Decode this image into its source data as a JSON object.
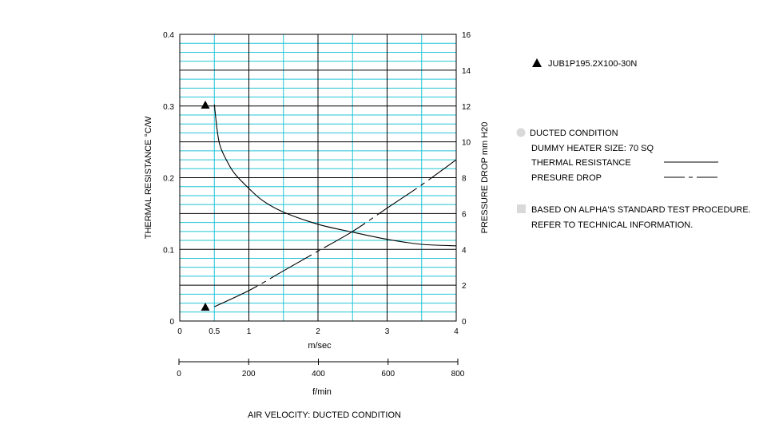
{
  "chart_data": {
    "type": "line",
    "title": "",
    "model": "JUB1P195.2X100-30N",
    "x": {
      "label": "m/sec",
      "range": [
        0,
        4
      ],
      "ticks": [
        "0",
        "0.5",
        "1",
        "2",
        "3",
        "4"
      ],
      "tick_values": [
        0,
        0.5,
        1,
        2,
        3,
        4
      ]
    },
    "x2": {
      "label": "f/min",
      "range": [
        0,
        800
      ],
      "ticks": [
        "0",
        "200",
        "400",
        "600",
        "800"
      ],
      "tick_values": [
        0,
        200,
        400,
        600,
        800
      ]
    },
    "y_left": {
      "label": "THERMAL RESISTANCE  °C/W",
      "range": [
        0,
        0.4
      ],
      "ticks": [
        "0",
        "0.1",
        "0.2",
        "0.3",
        "0.4"
      ],
      "tick_values": [
        0,
        0.1,
        0.2,
        0.3,
        0.4
      ]
    },
    "y_right": {
      "label": "PRESSURE DROP  mm H20",
      "range": [
        0,
        16
      ],
      "ticks": [
        "0",
        "2",
        "4",
        "6",
        "8",
        "10",
        "12",
        "14",
        "16"
      ],
      "tick_values": [
        0,
        2,
        4,
        6,
        8,
        10,
        12,
        14,
        16
      ]
    },
    "grid": true,
    "series": [
      {
        "name": "THERMAL RESISTANCE",
        "axis": "left",
        "style": "solid",
        "x": [
          0.5,
          0.55,
          0.6,
          0.7,
          0.8,
          1.0,
          1.2,
          1.5,
          2.0,
          2.5,
          3.0,
          3.5,
          4.0
        ],
        "y": [
          0.302,
          0.26,
          0.24,
          0.22,
          0.205,
          0.185,
          0.168,
          0.152,
          0.135,
          0.124,
          0.114,
          0.107,
          0.105
        ]
      },
      {
        "name": "PRESURE DROP",
        "axis": "right",
        "style": "dash-dot",
        "x": [
          0.5,
          1.0,
          1.5,
          2.0,
          2.5,
          3.0,
          3.5,
          4.0
        ],
        "y": [
          0.8,
          1.7,
          2.8,
          3.9,
          5.0,
          6.3,
          7.6,
          9.0
        ]
      }
    ],
    "markers": [
      {
        "series": "THERMAL RESISTANCE",
        "x": 0.37,
        "y": 0.302,
        "axis": "left"
      },
      {
        "series": "PRESURE DROP",
        "x": 0.37,
        "y": 0.8,
        "axis": "right"
      }
    ],
    "caption": "AIR VELOCITY:  DUCTED CONDITION",
    "legend": {
      "model_label": "JUB1P195.2X100-30N",
      "condition_title": "DUCTED CONDITION",
      "heater": "DUMMY HEATER SIZE:  70 SQ",
      "thermal": "THERMAL RESISTANCE",
      "pressure": "PRESURE DROP",
      "note_line1": "BASED ON ALPHA'S STANDARD TEST PROCEDURE.",
      "note_line2": "REFER TO TECHNICAL INFORMATION."
    },
    "colors": {
      "minor_grid": "#22c4d6",
      "major_grid": "#000000",
      "bullet": "#d9d9d9"
    }
  }
}
